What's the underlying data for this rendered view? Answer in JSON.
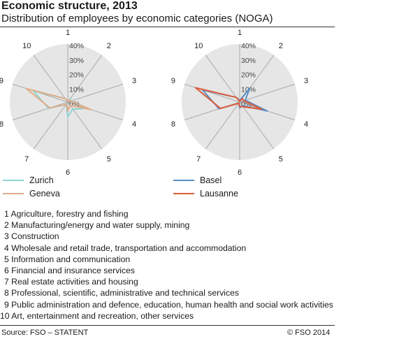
{
  "header": {
    "title": "Economic structure, 2013",
    "subtitle": "Distribution of employees by economic categories (NOGA)"
  },
  "chart_data": [
    {
      "type": "radar",
      "axes": [
        "1",
        "2",
        "3",
        "4",
        "5",
        "6",
        "7",
        "8",
        "9",
        "10"
      ],
      "rlim": [
        0,
        40
      ],
      "ticks": [
        "0%",
        "10%",
        "20%",
        "30%",
        "40%"
      ],
      "series": [
        {
          "name": "Zurich",
          "color": "#8fd3d3",
          "values": [
            0.5,
            3,
            2,
            14,
            6,
            10,
            2,
            14,
            25,
            3
          ]
        },
        {
          "name": "Geneva",
          "color": "#e0ad88",
          "values": [
            0.5,
            2,
            2,
            17,
            3,
            6,
            2,
            13,
            30,
            3
          ]
        }
      ]
    },
    {
      "type": "radar",
      "axes": [
        "1",
        "2",
        "3",
        "4",
        "5",
        "6",
        "7",
        "8",
        "9",
        "10"
      ],
      "rlim": [
        0,
        40
      ],
      "ticks": [
        "0%",
        "10%",
        "20%",
        "30%",
        "40%"
      ],
      "series": [
        {
          "name": "Basel",
          "color": "#5b8ec4",
          "values": [
            1,
            12,
            4,
            20,
            3,
            4,
            1,
            15,
            27,
            4
          ]
        },
        {
          "name": "Lausanne",
          "color": "#de5c3c",
          "values": [
            0.5,
            3,
            3,
            16,
            4,
            3,
            1,
            14,
            32,
            4
          ]
        }
      ]
    }
  ],
  "notes": [
    "1 Agriculture, forestry and fishing",
    "2 Manufacturing/energy and water supply, mining",
    "3 Construction",
    "4 Wholesale and retail trade, transportation and accommodation",
    "5 Information and communication",
    "6 Financial and insurance services",
    "7 Real estate activities and housing",
    "8 Professional, scientific, administrative and technical services",
    "9 Public administration and defence, education, human health and social work activities",
    "10 Art, entertainment and recreation, other services"
  ],
  "footer": {
    "source": "Source: FSO – STATENT",
    "copyright": "© FSO 2014"
  }
}
